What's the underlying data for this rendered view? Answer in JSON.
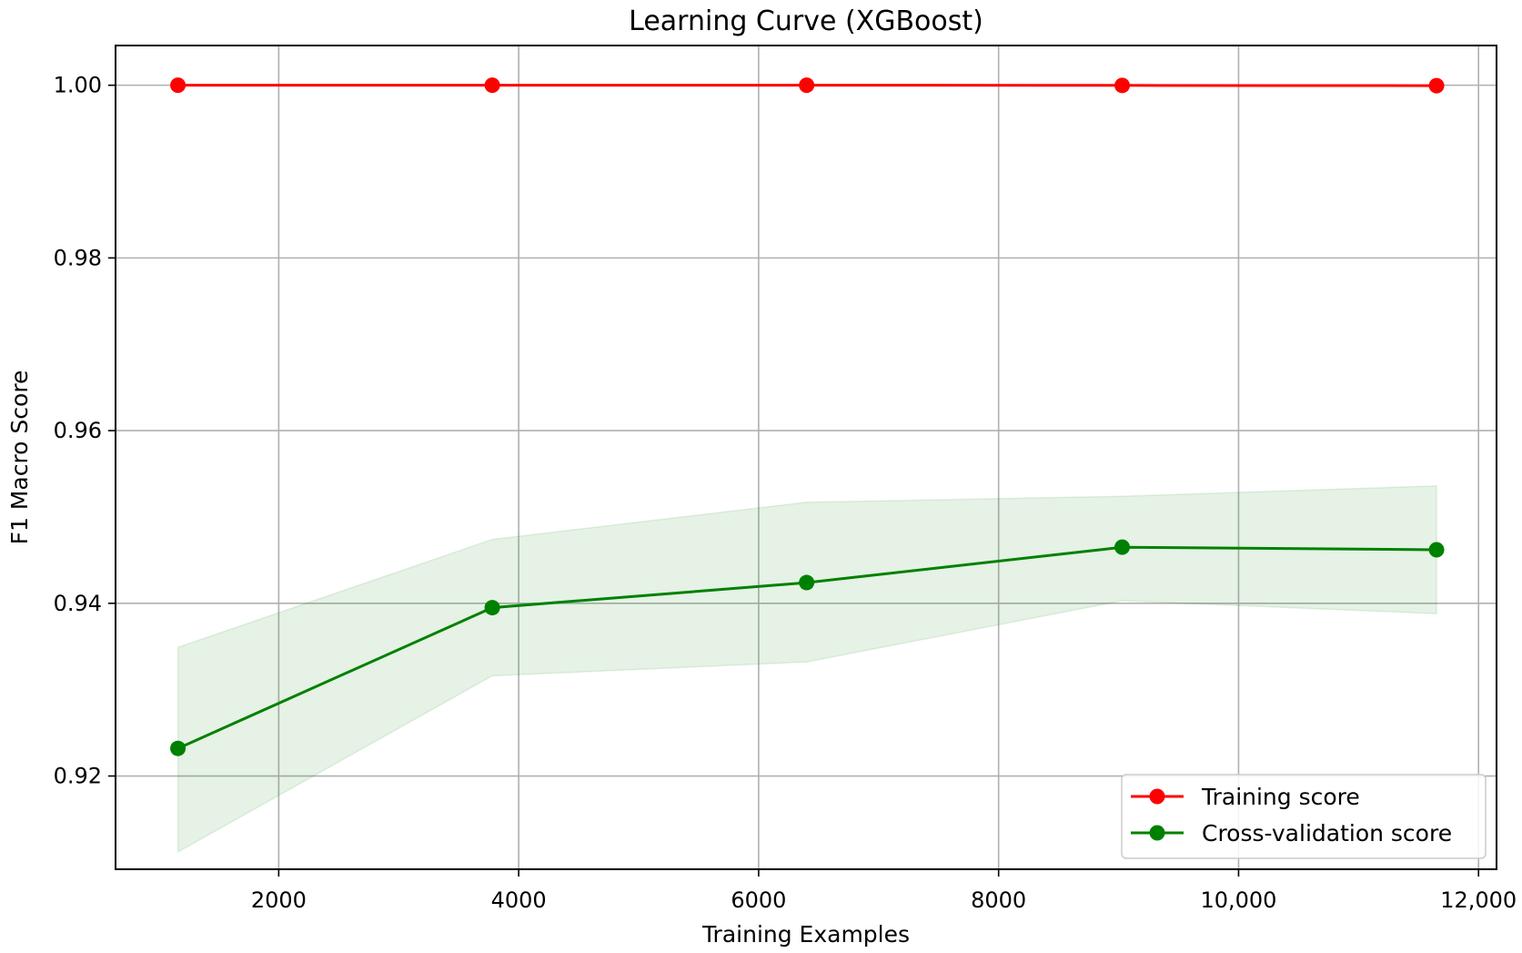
{
  "chart_data": {
    "type": "line",
    "title": "Learning Curve (XGBoost)",
    "xlabel": "Training Examples",
    "ylabel": "F1 Macro Score",
    "xlim": [
      640,
      12150
    ],
    "ylim": [
      0.9092,
      1.0046
    ],
    "x_ticks": [
      2000,
      4000,
      6000,
      8000,
      10000,
      12000
    ],
    "x_tick_labels": [
      "2000",
      "4000",
      "6000",
      "8000",
      "10,000",
      "12,000"
    ],
    "y_ticks": [
      0.92,
      0.94,
      0.96,
      0.98,
      1.0
    ],
    "y_tick_labels": [
      "0.92",
      "0.94",
      "0.96",
      "0.98",
      "1.00"
    ],
    "grid": true,
    "legend_position": "bottom-right",
    "x": [
      1160,
      3780,
      6400,
      9030,
      11650
    ],
    "series": [
      {
        "name": "Training score",
        "color": "#ff0000",
        "values": [
          1.0,
          1.0,
          1.0,
          0.99998,
          0.99995
        ],
        "band_lower": [
          1.0,
          1.0,
          1.0,
          0.99998,
          0.99995
        ],
        "band_upper": [
          1.0,
          1.0,
          1.0,
          0.99998,
          0.99995
        ]
      },
      {
        "name": "Cross-validation score",
        "color": "#008000",
        "band_color": "#008000",
        "values": [
          0.9232,
          0.9395,
          0.9424,
          0.9465,
          0.9462
        ],
        "band_lower": [
          0.9112,
          0.9316,
          0.9332,
          0.9403,
          0.9388
        ],
        "band_upper": [
          0.9349,
          0.9474,
          0.9517,
          0.9524,
          0.9536
        ]
      }
    ]
  }
}
